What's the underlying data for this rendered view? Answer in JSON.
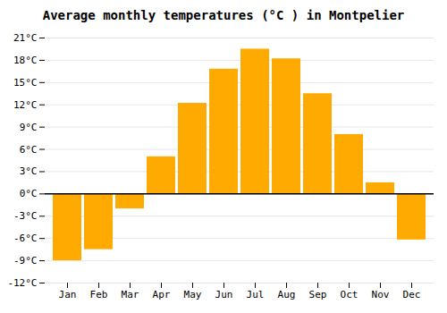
{
  "chart_data": {
    "type": "bar",
    "title": "Average monthly temperatures (°C ) in Montpelier",
    "categories": [
      "Jan",
      "Feb",
      "Mar",
      "Apr",
      "May",
      "Jun",
      "Jul",
      "Aug",
      "Sep",
      "Oct",
      "Nov",
      "Dec"
    ],
    "values": [
      -9.0,
      -7.5,
      -2.0,
      5.0,
      12.2,
      16.8,
      19.5,
      18.2,
      13.5,
      8.0,
      1.5,
      -6.2
    ],
    "color": "#FFAA00",
    "ylim": [
      -12,
      21
    ],
    "yticks": [
      {
        "value": -12,
        "label": "-12°C"
      },
      {
        "value": -9,
        "label": "-9°C"
      },
      {
        "value": -6,
        "label": "-6°C"
      },
      {
        "value": -3,
        "label": "-3°C"
      },
      {
        "value": 0,
        "label": "0°C"
      },
      {
        "value": 3,
        "label": "3°C"
      },
      {
        "value": 6,
        "label": "6°C"
      },
      {
        "value": 9,
        "label": "9°C"
      },
      {
        "value": 12,
        "label": "12°C"
      },
      {
        "value": 15,
        "label": "15°C"
      },
      {
        "value": 18,
        "label": "18°C"
      },
      {
        "value": 21,
        "label": "21°C"
      }
    ],
    "grid": true
  }
}
